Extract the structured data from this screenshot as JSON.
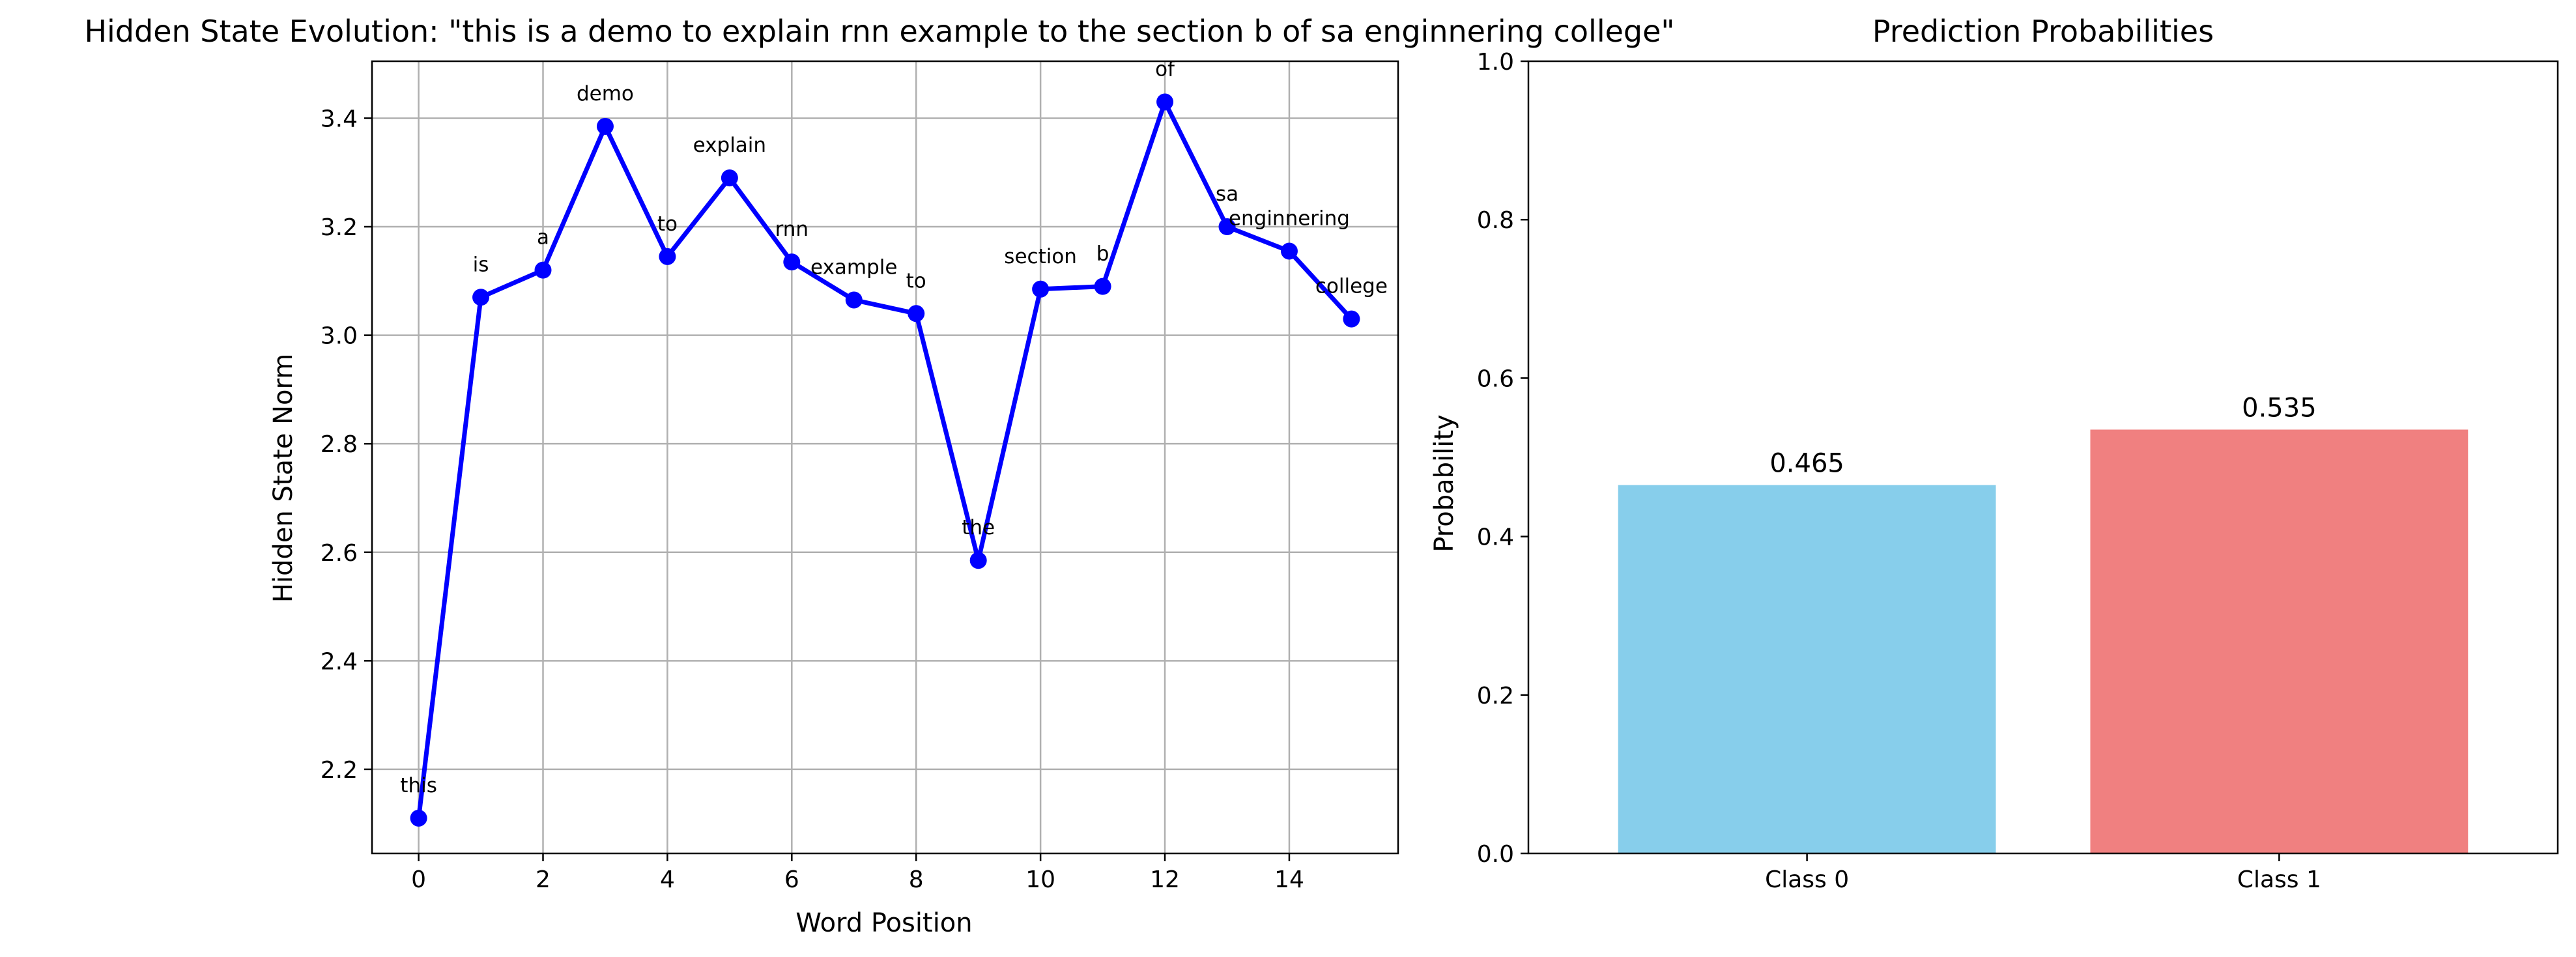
{
  "chart_data": [
    {
      "type": "line",
      "title": "Hidden State Evolution: \"this is a demo to explain rnn example to the section b of sa enginnering college\"",
      "xlabel": "Word Position",
      "ylabel": "Hidden State Norm",
      "xlim": [
        -0.75,
        15.75
      ],
      "ylim": [
        2.045,
        3.505
      ],
      "xticks": [
        0,
        2,
        4,
        6,
        8,
        10,
        12,
        14
      ],
      "yticks": [
        2.2,
        2.4,
        2.6,
        2.8,
        3.0,
        3.2,
        3.4
      ],
      "grid": true,
      "color": "#0000ff",
      "x": [
        0,
        1,
        2,
        3,
        4,
        5,
        6,
        7,
        8,
        9,
        10,
        11,
        12,
        13,
        14,
        15
      ],
      "y": [
        2.11,
        3.07,
        3.12,
        3.385,
        3.145,
        3.29,
        3.135,
        3.065,
        3.04,
        2.585,
        3.085,
        3.09,
        3.43,
        3.2,
        3.155,
        3.03
      ],
      "words": [
        "this",
        "is",
        "a",
        "demo",
        "to",
        "explain",
        "rnn",
        "example",
        "to",
        "the",
        "section",
        "b",
        "of",
        "sa",
        "enginnering",
        "college"
      ]
    },
    {
      "type": "bar",
      "title": "Prediction Probabilities",
      "xlabel": "",
      "ylabel": "Probability",
      "ylim": [
        0,
        1.0
      ],
      "yticks": [
        0.0,
        0.2,
        0.4,
        0.6,
        0.8,
        1.0
      ],
      "grid": false,
      "categories": [
        "Class 0",
        "Class 1"
      ],
      "values": [
        0.465,
        0.535
      ],
      "value_labels": [
        "0.465",
        "0.535"
      ],
      "colors": [
        "#87ceeb",
        "#f08080"
      ]
    }
  ]
}
